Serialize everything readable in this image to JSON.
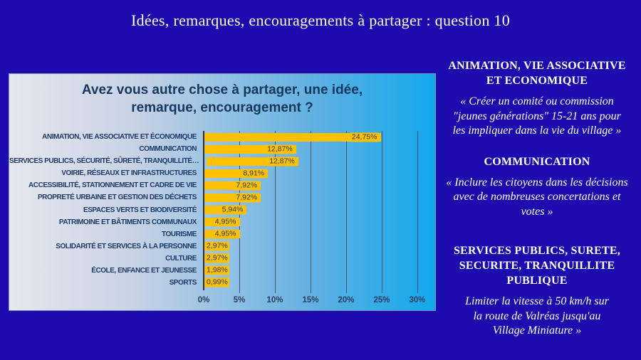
{
  "slide": {
    "title": "Idées, remarques, encouragements à partager : question 10",
    "background_color": "#1c0bad"
  },
  "chart": {
    "panel_title": "Avez vous autre chose à partager, une idée,\nremarque, encouragement ?"
  },
  "chart_data": {
    "type": "bar",
    "orientation": "horizontal",
    "title": "Avez vous autre chose à partager, une idée, remarque, encouragement ?",
    "categories": [
      "ANIMATION, VIE ASSOCIATIVE ET ÉCONOMIQUE",
      "COMMUNICATION",
      "SERVICES PUBLICS, SÉCURITÉ, SÛRETÉ, TRANQUILLITÉ…",
      "VOIRIE, RÉSEAUX ET INFRASTRUCTURES",
      "ACCESSIBILITÉ, STATIONNEMENT ET CADRE DE VIE",
      "PROPRETÉ URBAINE ET GESTION DES DÉCHETS",
      "ESPACES VERTS ET BIODIVERSITÉ",
      "PATRIMOINE ET BÂTIMENTS COMMUNAUX",
      "TOURISME",
      "SOLIDARITÉ ET SERVICES À LA PERSONNE",
      "CULTURE",
      "ÉCOLE, ENFANCE ET JEUNESSE",
      "SPORTS"
    ],
    "values": [
      24.75,
      12.87,
      12.87,
      8.91,
      7.92,
      7.92,
      5.94,
      4.95,
      4.95,
      2.97,
      2.97,
      1.98,
      0.99
    ],
    "value_labels": [
      "24,75%",
      "12,87%",
      "12,87%",
      "8,91%",
      "7,92%",
      "7,92%",
      "5,94%",
      "4,95%",
      "4,95%",
      "2,97%",
      "2,97%",
      "1,98%",
      "0,99%"
    ],
    "x_ticks": [
      "0%",
      "5%",
      "10%",
      "15%",
      "20%",
      "25%",
      "30%"
    ],
    "xlim": [
      0,
      30
    ],
    "bar_color": "#FFC000",
    "grid": true,
    "legend_position": "none"
  },
  "sidebar": {
    "blocks": [
      {
        "heading": "ANIMATION, VIE ASSOCIATIVE\nET ECONOMIQUE",
        "quote": "« Créer un comité ou commission\n\"jeunes générations\" 15-21 ans pour\nles impliquer dans la vie du village »"
      },
      {
        "heading": "COMMUNICATION",
        "quote": "« Inclure les citoyens dans les décisions\navec de nombreuses concertations et\nvotes »"
      },
      {
        "heading": "SERVICES PUBLICS, SURETE,\nSECURITE, TRANQUILLITE\nPUBLIQUE",
        "quote": "Limiter la vitesse à 50 km/h sur\nla route de Valréas jusqu'au\nVillage Miniature »"
      }
    ]
  }
}
